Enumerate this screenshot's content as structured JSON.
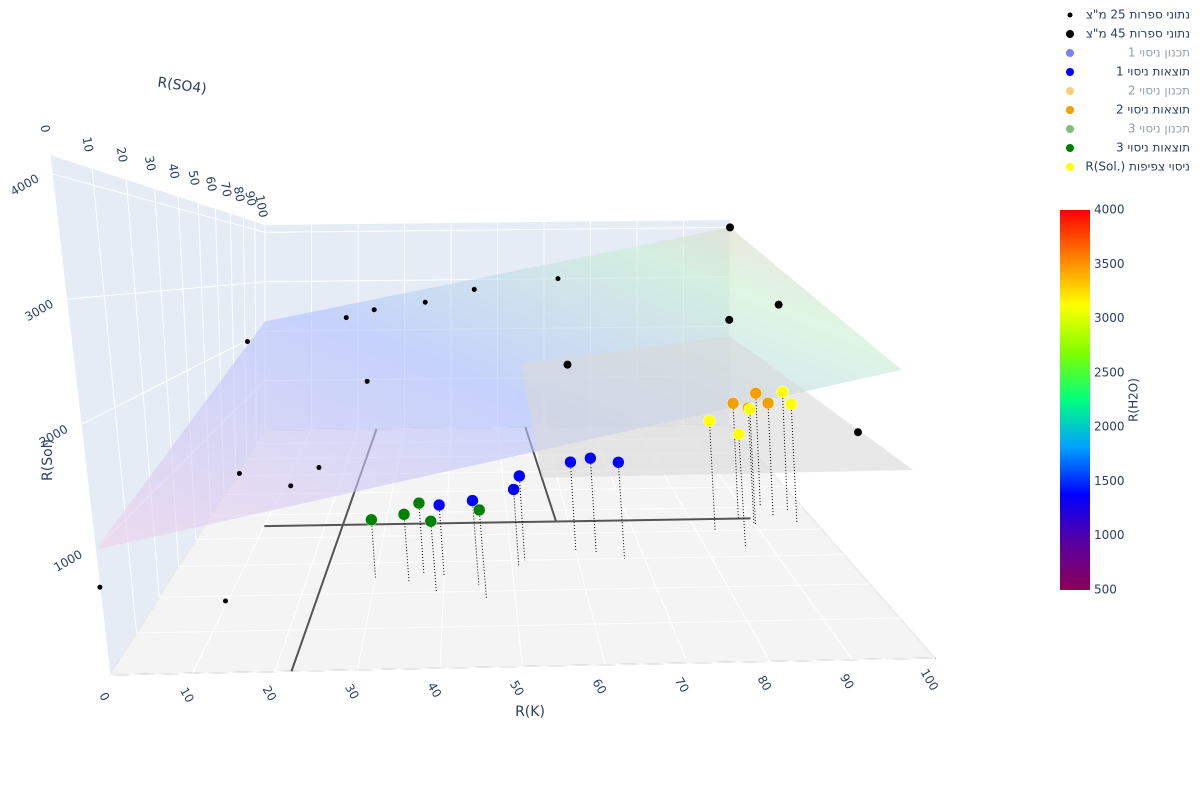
{
  "chart_data": {
    "type": "scatter3d",
    "xaxis_title": "R(K)",
    "yaxis_title": "R(SO4)",
    "zaxis_title": "R(Sol)",
    "xlim": [
      0,
      100
    ],
    "ylim": [
      0,
      100
    ],
    "zlim": [
      0,
      4150
    ],
    "xticks": [
      0,
      10,
      20,
      30,
      40,
      50,
      60,
      70,
      80,
      90,
      100
    ],
    "yticks": [
      0,
      10,
      20,
      30,
      40,
      50,
      60,
      70,
      80,
      90,
      100
    ],
    "zticks": [
      1000,
      2000,
      3000,
      4000
    ],
    "series": [
      {
        "name": "נתוני ספרות 25 מ\"צ",
        "color": "#000000",
        "size": 2.5,
        "x": [
          0,
          15,
          63,
          45,
          35,
          25,
          20,
          5,
          10,
          18,
          22,
          28
        ],
        "y": [
          0,
          0,
          100,
          100,
          90,
          85,
          80,
          60,
          30,
          28,
          30,
          45
        ],
        "z": [
          700,
          570,
          3000,
          2800,
          2600,
          2500,
          2400,
          2200,
          1000,
          900,
          1050,
          1800
        ]
      },
      {
        "name": "נתוני ספרות 45 מ\"צ",
        "color": "#000000",
        "size": 4,
        "x": [
          100,
          62,
          95,
          88,
          100
        ],
        "y": [
          100,
          60,
          40,
          45,
          20
        ],
        "z": [
          4000,
          1800,
          2700,
          2500,
          1500
        ]
      },
      {
        "name": "תכנון ניסוי 1",
        "color": "#0000ff",
        "visible": "legendonly"
      },
      {
        "name": "תוצאות ניסוי 1",
        "color": "#0000ff",
        "size": 6,
        "x": [
          40,
          45,
          51,
          52,
          60,
          63,
          67
        ],
        "y": [
          25,
          22,
          28,
          30,
          33,
          32,
          30
        ],
        "z": [
          740,
          850,
          820,
          920,
          1000,
          1060,
          1050
        ]
      },
      {
        "name": "תכנון ניסוי 2",
        "color": "#f0a000",
        "visible": "legendonly"
      },
      {
        "name": "תוצאות ניסוי 2",
        "color": "#f0a000",
        "size": 6,
        "x": [
          88,
          93,
          94,
          90
        ],
        "y": [
          45,
          50,
          46,
          43
        ],
        "z": [
          1450,
          1500,
          1430,
          1420
        ]
      },
      {
        "name": "תכנון ניסוי 3",
        "color": "#008000",
        "visible": "legendonly"
      },
      {
        "name": "תוצאות ניסוי 3",
        "color": "#008000",
        "size": 6,
        "x": [
          30,
          35,
          37,
          39,
          46
        ],
        "y": [
          25,
          23,
          26,
          20,
          18
        ],
        "z": [
          600,
          700,
          740,
          700,
          850
        ]
      },
      {
        "name": "R(Sol.) ניסוי צפיפות",
        "color": "#ffff00",
        "size": 6,
        "x": [
          83,
          86,
          90,
          97,
          97
        ],
        "y": [
          40,
          33,
          42,
          48,
          43
        ],
        "z": [
          1320,
          1280,
          1420,
          1540,
          1460
        ]
      }
    ],
    "colorbar": {
      "title": "R(H2O)",
      "lim": [
        500,
        4000
      ],
      "ticks": [
        500,
        1000,
        1500,
        2000,
        2500,
        3000,
        3500,
        4000
      ],
      "colorscale": [
        "#8b0057",
        "#5a00a0",
        "#0000ff",
        "#00a0ff",
        "#00ff80",
        "#80ff00",
        "#ffff00",
        "#ff8000",
        "#ff0000"
      ]
    }
  }
}
